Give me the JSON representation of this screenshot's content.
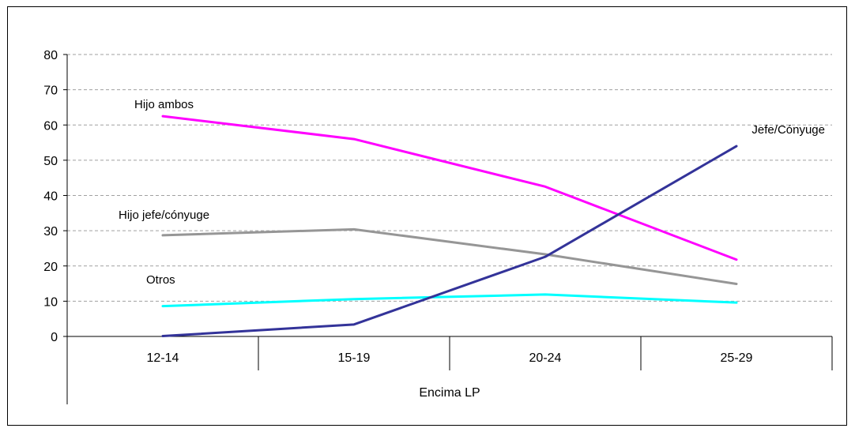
{
  "chart_data": {
    "type": "line",
    "categories": [
      "12-14",
      "15-19",
      "20-24",
      "25-29"
    ],
    "group_label": "Encima LP",
    "ylim": [
      0,
      80
    ],
    "yticks": [
      0,
      10,
      20,
      30,
      40,
      50,
      60,
      70,
      80
    ],
    "grid": true,
    "series": [
      {
        "name": "Hijo ambos",
        "values": [
          62.5,
          56,
          42.5,
          21.8
        ],
        "color": "#ff00ff"
      },
      {
        "name": "Hijo jefe/cónyuge",
        "values": [
          28.7,
          30.4,
          23.3,
          14.9
        ],
        "color": "#969696"
      },
      {
        "name": "Otros",
        "values": [
          8.6,
          10.6,
          11.9,
          9.6
        ],
        "color": "#00ffff"
      },
      {
        "name": "Jefe/Cónyuge",
        "values": [
          0.1,
          3.4,
          22.6,
          54
        ],
        "color": "#333399"
      }
    ]
  }
}
